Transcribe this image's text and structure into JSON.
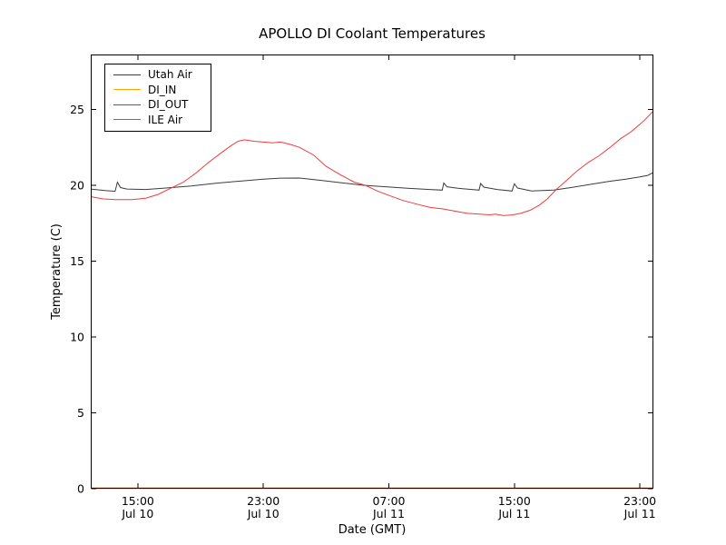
{
  "figure": {
    "background": "#ffffff",
    "frame_color": "#000000",
    "bottom_spine_tint": "maroon (DI_IN and DI_OUT lines overlap axis at 0)"
  },
  "chart_data": {
    "type": "line",
    "title": "APOLLO DI Coolant Temperatures",
    "xlabel": "Date (GMT)",
    "ylabel": "Temperature (C)",
    "x_unit": "hours since Jul 10 12:00 GMT",
    "xlim": [
      0,
      35.86
    ],
    "ylim": [
      0,
      28.62
    ],
    "grid": false,
    "legend_position": "upper left",
    "tick_direction": "in",
    "yticks": [
      0,
      5,
      10,
      15,
      20,
      25
    ],
    "xticks": [
      {
        "h": 3,
        "time": "15:00",
        "date": "Jul 10"
      },
      {
        "h": 11,
        "time": "23:00",
        "date": "Jul 10"
      },
      {
        "h": 19,
        "time": "07:00",
        "date": "Jul 11"
      },
      {
        "h": 27,
        "time": "15:00",
        "date": "Jul 11"
      },
      {
        "h": 35,
        "time": "23:00",
        "date": "Jul 11"
      }
    ],
    "series": [
      {
        "name": "Utah Air",
        "color": "#3c3c3c",
        "points": [
          [
            0,
            19.75
          ],
          [
            0.9,
            19.65
          ],
          [
            1.55,
            19.6
          ],
          [
            1.7,
            20.2
          ],
          [
            1.9,
            19.85
          ],
          [
            2.3,
            19.75
          ],
          [
            3.5,
            19.72
          ],
          [
            4.6,
            19.8
          ],
          [
            6.4,
            19.95
          ],
          [
            8.1,
            20.15
          ],
          [
            9.8,
            20.3
          ],
          [
            11.0,
            20.4
          ],
          [
            12.1,
            20.47
          ],
          [
            13.3,
            20.48
          ],
          [
            14.7,
            20.32
          ],
          [
            16.1,
            20.15
          ],
          [
            17.4,
            20.0
          ],
          [
            18.8,
            19.9
          ],
          [
            20.2,
            19.8
          ],
          [
            21.6,
            19.72
          ],
          [
            22.4,
            19.68
          ],
          [
            22.5,
            20.15
          ],
          [
            22.7,
            19.9
          ],
          [
            23.4,
            19.8
          ],
          [
            24.3,
            19.72
          ],
          [
            24.75,
            19.68
          ],
          [
            24.85,
            20.12
          ],
          [
            25.05,
            19.88
          ],
          [
            25.9,
            19.72
          ],
          [
            26.85,
            19.62
          ],
          [
            27.0,
            20.1
          ],
          [
            27.2,
            19.82
          ],
          [
            28.1,
            19.62
          ],
          [
            29.5,
            19.68
          ],
          [
            30.6,
            19.85
          ],
          [
            31.8,
            20.05
          ],
          [
            33.0,
            20.25
          ],
          [
            34.1,
            20.4
          ],
          [
            35.0,
            20.55
          ],
          [
            35.5,
            20.65
          ],
          [
            35.86,
            20.85
          ]
        ]
      },
      {
        "name": "DI_IN",
        "color": "#ffa500",
        "points": [
          [
            0,
            0
          ],
          [
            35.86,
            0
          ]
        ]
      },
      {
        "name": "DI_OUT",
        "color": "#993399",
        "points": [
          [
            0,
            0
          ],
          [
            35.86,
            0
          ]
        ]
      },
      {
        "name": "ILE Air",
        "color": "#f03b3b",
        "points": [
          [
            0,
            19.25
          ],
          [
            0.8,
            19.1
          ],
          [
            1.6,
            19.05
          ],
          [
            2.6,
            19.05
          ],
          [
            3.5,
            19.15
          ],
          [
            4.3,
            19.4
          ],
          [
            5.0,
            19.75
          ],
          [
            5.9,
            20.2
          ],
          [
            6.7,
            20.8
          ],
          [
            7.5,
            21.5
          ],
          [
            8.4,
            22.2
          ],
          [
            9.0,
            22.65
          ],
          [
            9.4,
            22.9
          ],
          [
            9.8,
            23.0
          ],
          [
            10.4,
            22.9
          ],
          [
            11.0,
            22.85
          ],
          [
            11.6,
            22.8
          ],
          [
            12.1,
            22.85
          ],
          [
            12.7,
            22.7
          ],
          [
            13.3,
            22.5
          ],
          [
            14.2,
            22.0
          ],
          [
            15.0,
            21.25
          ],
          [
            15.9,
            20.7
          ],
          [
            16.8,
            20.2
          ],
          [
            17.5,
            20.0
          ],
          [
            18.3,
            19.6
          ],
          [
            19.1,
            19.3
          ],
          [
            19.9,
            19.0
          ],
          [
            20.8,
            18.75
          ],
          [
            21.6,
            18.55
          ],
          [
            22.4,
            18.45
          ],
          [
            23.2,
            18.3
          ],
          [
            24.0,
            18.15
          ],
          [
            24.8,
            18.1
          ],
          [
            25.4,
            18.05
          ],
          [
            25.8,
            18.1
          ],
          [
            26.3,
            18.0
          ],
          [
            26.9,
            18.05
          ],
          [
            27.4,
            18.15
          ],
          [
            28.0,
            18.35
          ],
          [
            28.6,
            18.7
          ],
          [
            29.1,
            19.1
          ],
          [
            29.7,
            19.75
          ],
          [
            30.3,
            20.3
          ],
          [
            31.0,
            20.95
          ],
          [
            31.7,
            21.5
          ],
          [
            32.4,
            21.95
          ],
          [
            33.1,
            22.5
          ],
          [
            33.8,
            23.1
          ],
          [
            34.4,
            23.5
          ],
          [
            34.8,
            23.85
          ],
          [
            35.3,
            24.3
          ],
          [
            35.86,
            24.9
          ]
        ]
      }
    ]
  }
}
